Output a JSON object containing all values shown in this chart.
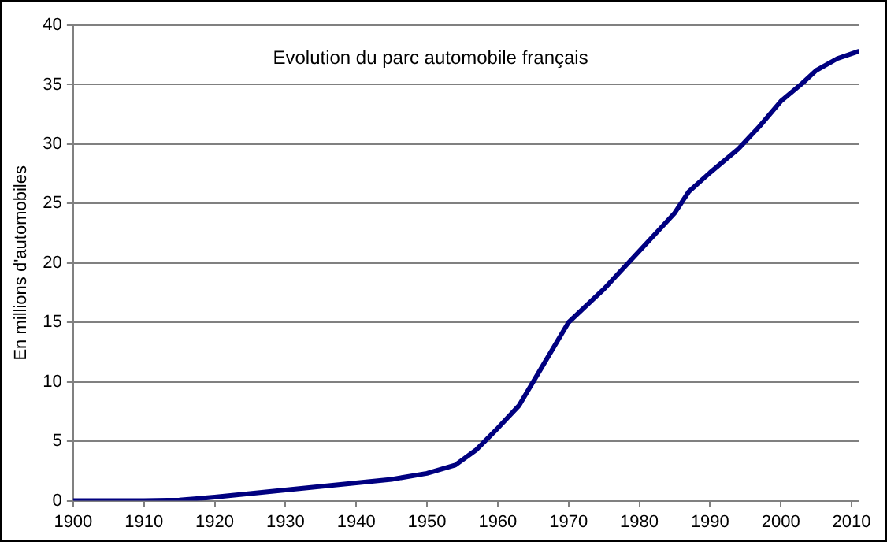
{
  "chart_data": {
    "type": "line",
    "title": "Evolution du parc automobile français",
    "ylabel": "En millions d'automobiles",
    "x": [
      1900,
      1910,
      1915,
      1920,
      1925,
      1930,
      1935,
      1940,
      1945,
      1950,
      1954,
      1957,
      1960,
      1963,
      1966,
      1970,
      1975,
      1980,
      1985,
      1987,
      1990,
      1994,
      1997,
      2000,
      2003,
      2005,
      2008,
      2011
    ],
    "series": [
      {
        "color": "#000080",
        "values": [
          0,
          0,
          0.05,
          0.3,
          0.6,
          0.9,
          1.2,
          1.5,
          1.8,
          2.3,
          3.0,
          4.3,
          6.1,
          8.0,
          11,
          15,
          17.8,
          21,
          24.2,
          26,
          27.6,
          29.6,
          31.5,
          33.6,
          35.1,
          36.2,
          37.2,
          37.8
        ]
      }
    ],
    "xlim": [
      1900,
      2011
    ],
    "xticks": [
      1900,
      1910,
      1920,
      1930,
      1940,
      1950,
      1960,
      1970,
      1980,
      1990,
      2000,
      2010
    ],
    "ylim": [
      0,
      40
    ],
    "yticks": [
      0,
      5,
      10,
      15,
      20,
      25,
      30,
      35,
      40
    ],
    "grid": "y",
    "legend": false,
    "marker": "none",
    "line_style": "solid"
  }
}
